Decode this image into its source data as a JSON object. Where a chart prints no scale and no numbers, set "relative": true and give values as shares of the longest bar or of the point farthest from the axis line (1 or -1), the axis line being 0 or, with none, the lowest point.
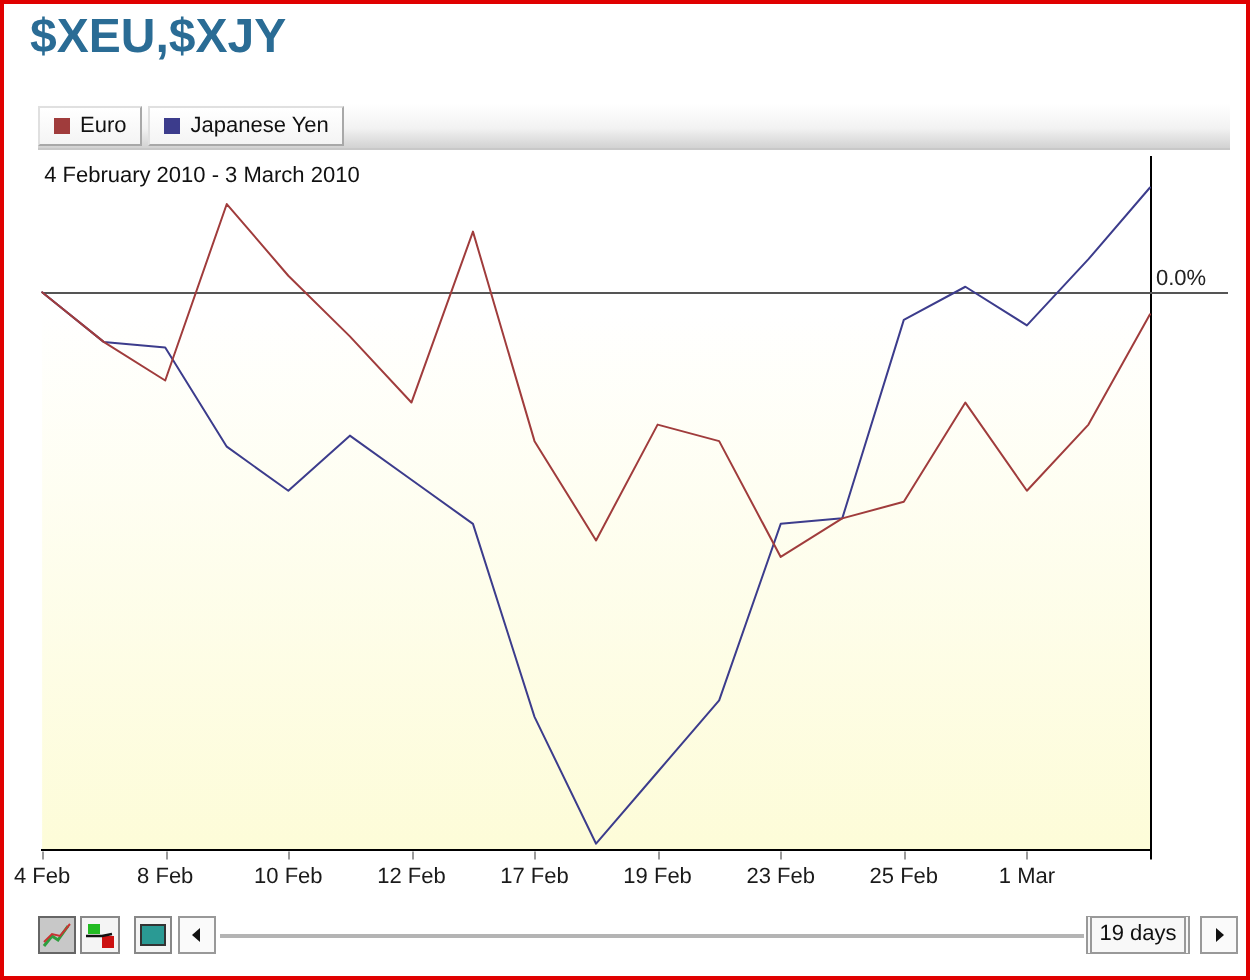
{
  "chart_data": {
    "type": "line",
    "title": "$XEU,$XJY",
    "subtitle": "4 February 2010 - 3 March 2010",
    "categories": [
      "4 Feb",
      null,
      "8 Feb",
      null,
      "10 Feb",
      null,
      "12 Feb",
      null,
      "17 Feb",
      null,
      "19 Feb",
      null,
      "23 Feb",
      null,
      "25 Feb",
      null,
      "1 Mar",
      null,
      null
    ],
    "relative": true,
    "series": [
      {
        "name": "Euro",
        "color": "#a03c3c",
        "values": [
          0,
          -0.09,
          -0.16,
          0.16,
          0.03,
          -0.08,
          -0.2,
          0.11,
          -0.27,
          -0.45,
          -0.24,
          -0.27,
          -0.48,
          -0.41,
          -0.38,
          -0.2,
          -0.36,
          -0.24,
          -0.04
        ]
      },
      {
        "name": "Japanese Yen",
        "color": "#3c3c8c",
        "values": [
          0,
          -0.09,
          -0.1,
          -0.28,
          -0.36,
          -0.26,
          -0.34,
          -0.42,
          -0.77,
          -1,
          -0.87,
          -0.74,
          -0.42,
          -0.41,
          -0.05,
          0.01,
          -0.06,
          0.06,
          0.19
        ]
      }
    ],
    "ref_lines": [
      {
        "axis": "y",
        "value": 0,
        "label": "0.0%",
        "color": "#555555"
      }
    ],
    "legend": "top left",
    "annotations": [
      "19 days"
    ]
  }
}
